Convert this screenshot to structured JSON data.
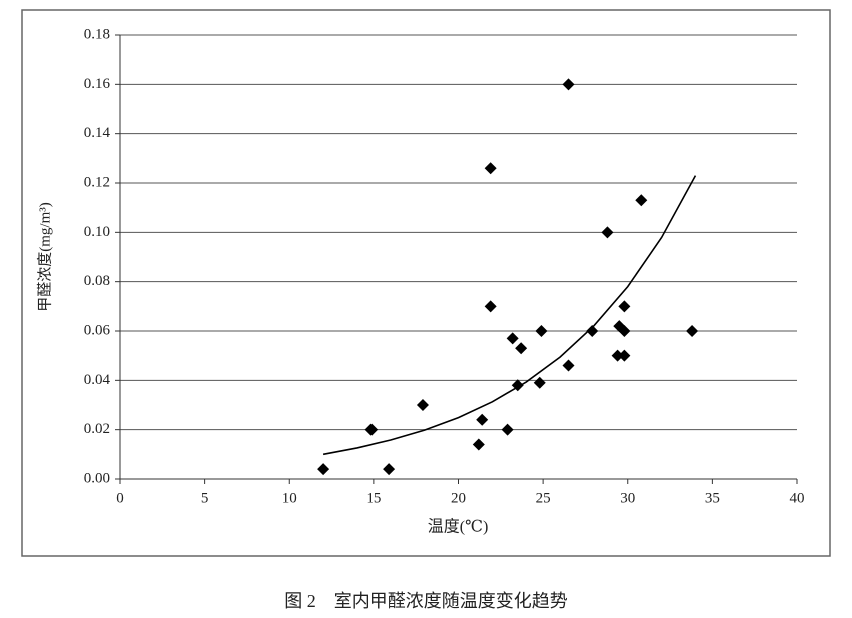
{
  "chart_data": {
    "type": "scatter",
    "caption": "图 2　室内甲醛浓度随温度变化趋势",
    "x_label": "温度(℃)",
    "y_label": "甲醛浓度(mg/m³)",
    "xlim": [
      0,
      40
    ],
    "xticks": [
      0,
      5,
      10,
      15,
      20,
      25,
      30,
      35,
      40
    ],
    "ylim": [
      0,
      0.18
    ],
    "yticks": [
      {
        "value": 0,
        "label": "0.00"
      },
      {
        "value": 0.02,
        "label": "0.02"
      },
      {
        "value": 0.04,
        "label": "0.04"
      },
      {
        "value": 0.06,
        "label": "0.06"
      },
      {
        "value": 0.08,
        "label": "0.08"
      },
      {
        "value": 0.1,
        "label": "0.10"
      },
      {
        "value": 0.12,
        "label": "0.12"
      },
      {
        "value": 0.14,
        "label": "0.14"
      },
      {
        "value": 0.16,
        "label": "0.16"
      },
      {
        "value": 0.18,
        "label": "0.18"
      }
    ],
    "grid": true,
    "series": [
      {
        "type": "scatter",
        "color": "#000000",
        "x": [
          12,
          14.8,
          14.9,
          15.9,
          17.9,
          21.2,
          21.4,
          21.9,
          21.9,
          22.9,
          23.2,
          23.5,
          23.7,
          24.8,
          24.9,
          26.5,
          26.5,
          27.9,
          28.8,
          29.4,
          29.5,
          29.8,
          29.8,
          29.8,
          30.8,
          33.8
        ],
        "y": [
          0.004,
          0.02,
          0.02,
          0.004,
          0.03,
          0.014,
          0.024,
          0.126,
          0.07,
          0.02,
          0.057,
          0.038,
          0.053,
          0.039,
          0.06,
          0.16,
          0.046,
          0.06,
          0.1,
          0.05,
          0.062,
          0.05,
          0.06,
          0.07,
          0.113,
          0.06
        ]
      },
      {
        "type": "line",
        "color": "#000000",
        "x": [
          12,
          14,
          16,
          18,
          20,
          22,
          24,
          26,
          28,
          30,
          32,
          34
        ],
        "y": [
          0.01,
          0.0126,
          0.0158,
          0.0198,
          0.0249,
          0.0313,
          0.0393,
          0.0494,
          0.0621,
          0.078,
          0.0979,
          0.123
        ]
      }
    ]
  }
}
